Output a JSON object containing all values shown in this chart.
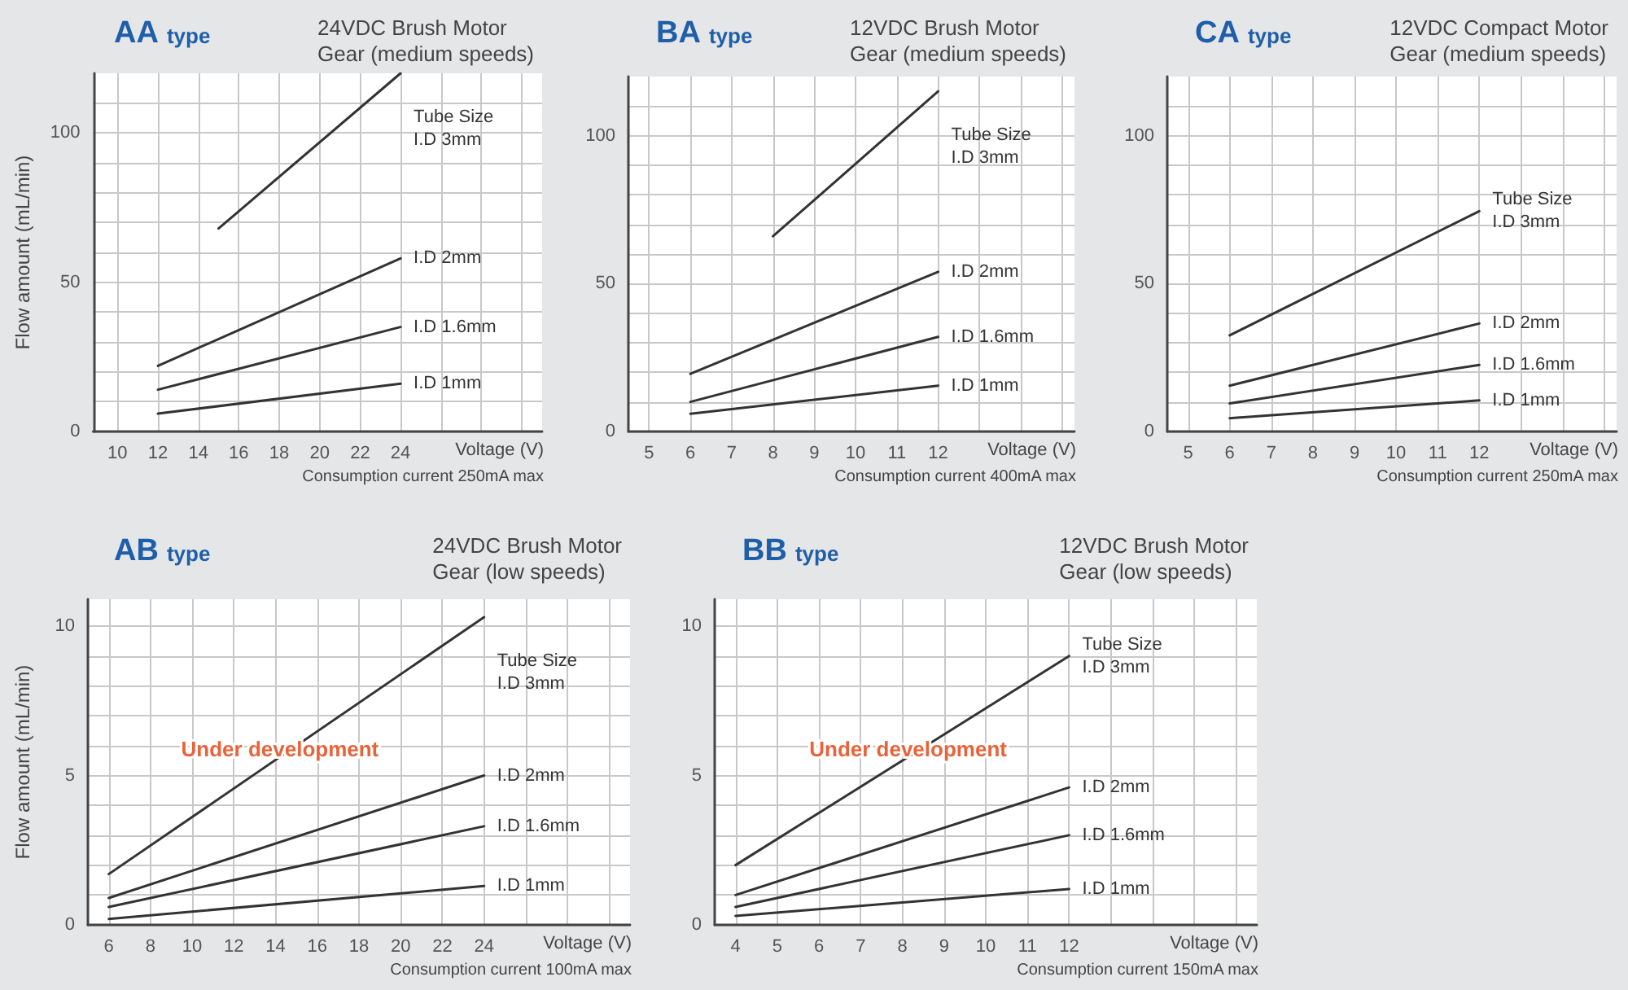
{
  "chart_data": [
    {
      "type": "line",
      "title": "AA type",
      "subtitle": "24VDC Brush Motor\nGear (medium speeds)",
      "xlabel": "Voltage (V)",
      "ylabel": "Flow amount (mL/min)",
      "annotations": [
        "Consumption current 250mA max"
      ],
      "xlim": [
        8.8,
        31
      ],
      "xticks": [
        10,
        12,
        14,
        16,
        18,
        20,
        22,
        24,
        {
          "value": 26,
          "label": null
        },
        {
          "value": 28,
          "label": null
        },
        {
          "value": 30,
          "label": null
        }
      ],
      "ylim": [
        0,
        120
      ],
      "yticks": [
        0,
        {
          "value": 10,
          "label": null
        },
        {
          "value": 20,
          "label": null
        },
        {
          "value": 30,
          "label": null
        },
        {
          "value": 40,
          "label": null
        },
        50,
        {
          "value": 60,
          "label": null
        },
        {
          "value": 70,
          "label": null
        },
        {
          "value": 80,
          "label": null
        },
        {
          "value": 90,
          "label": null
        },
        100,
        {
          "value": 110,
          "label": null
        }
      ],
      "grid": true,
      "marker": "none",
      "series": [
        {
          "name": "Tube Size\nI.D 3mm",
          "color": "#333333",
          "x": [
            15,
            24
          ],
          "values": [
            68,
            120
          ]
        },
        {
          "name": "I.D 2mm",
          "color": "#333333",
          "x": [
            12,
            24
          ],
          "values": [
            22,
            58
          ]
        },
        {
          "name": "I.D 1.6mm",
          "color": "#333333",
          "x": [
            12,
            24
          ],
          "values": [
            14,
            35
          ]
        },
        {
          "name": "I.D 1mm",
          "color": "#333333",
          "x": [
            12,
            24
          ],
          "values": [
            6,
            16
          ]
        }
      ]
    },
    {
      "type": "line",
      "title": "BA type",
      "subtitle": "12VDC Brush Motor\nGear (medium speeds)",
      "xlabel": "Voltage (V)",
      "annotations": [
        "Consumption current 400mA max"
      ],
      "xlim": [
        4.5,
        15.3
      ],
      "xticks": [
        5,
        6,
        7,
        8,
        9,
        10,
        11,
        12,
        {
          "value": 13,
          "label": null
        },
        {
          "value": 14,
          "label": null
        },
        {
          "value": 15,
          "label": null
        }
      ],
      "ylim": [
        0,
        120
      ],
      "yticks": [
        0,
        {
          "value": 10,
          "label": null
        },
        {
          "value": 20,
          "label": null
        },
        {
          "value": 30,
          "label": null
        },
        {
          "value": 40,
          "label": null
        },
        50,
        {
          "value": 60,
          "label": null
        },
        {
          "value": 70,
          "label": null
        },
        {
          "value": 80,
          "label": null
        },
        {
          "value": 90,
          "label": null
        },
        100,
        {
          "value": 110,
          "label": null
        }
      ],
      "grid": true,
      "marker": "none",
      "series": [
        {
          "name": "Tube Size\nI.D 3mm",
          "color": "#333333",
          "x": [
            8,
            12
          ],
          "values": [
            66,
            115
          ]
        },
        {
          "name": "I.D 2mm",
          "color": "#333333",
          "x": [
            6,
            12
          ],
          "values": [
            19.5,
            54
          ]
        },
        {
          "name": "I.D 1.6mm",
          "color": "#333333",
          "x": [
            6,
            12
          ],
          "values": [
            10,
            32
          ]
        },
        {
          "name": "I.D 1mm",
          "color": "#333333",
          "x": [
            6,
            12
          ],
          "values": [
            6,
            15.5
          ]
        }
      ]
    },
    {
      "type": "line",
      "title": "CA type",
      "subtitle": "12VDC Compact Motor\nGear (medium speeds)",
      "xlabel": "Voltage (V)",
      "annotations": [
        "Consumption current 250mA max"
      ],
      "xlim": [
        4.5,
        15.3
      ],
      "xticks": [
        5,
        6,
        7,
        8,
        9,
        10,
        11,
        12,
        {
          "value": 13,
          "label": null
        },
        {
          "value": 14,
          "label": null
        },
        {
          "value": 15,
          "label": null
        }
      ],
      "ylim": [
        0,
        120
      ],
      "yticks": [
        0,
        {
          "value": 10,
          "label": null
        },
        {
          "value": 20,
          "label": null
        },
        {
          "value": 30,
          "label": null
        },
        {
          "value": 40,
          "label": null
        },
        50,
        {
          "value": 60,
          "label": null
        },
        {
          "value": 70,
          "label": null
        },
        {
          "value": 80,
          "label": null
        },
        {
          "value": 90,
          "label": null
        },
        100,
        {
          "value": 110,
          "label": null
        }
      ],
      "grid": true,
      "marker": "none",
      "series": [
        {
          "name": "Tube Size\nI.D 3mm",
          "color": "#333333",
          "x": [
            6,
            12
          ],
          "values": [
            32.5,
            74.5
          ]
        },
        {
          "name": "I.D 2mm",
          "color": "#333333",
          "x": [
            6,
            12
          ],
          "values": [
            15.5,
            36.5
          ]
        },
        {
          "name": "I.D 1.6mm",
          "color": "#333333",
          "x": [
            6,
            12
          ],
          "values": [
            9.5,
            22.5
          ]
        },
        {
          "name": "I.D 1mm",
          "color": "#333333",
          "x": [
            6,
            12
          ],
          "values": [
            4.5,
            10.5
          ]
        }
      ]
    },
    {
      "type": "line",
      "title": "AB type",
      "subtitle": "24VDC Brush Motor\nGear (low speeds)",
      "xlabel": "Voltage (V)",
      "ylabel": "Flow amount (mL/min)",
      "annotations": [
        "Consumption current 100mA max",
        "Under development"
      ],
      "xlim": [
        5,
        31
      ],
      "xticks": [
        6,
        8,
        10,
        12,
        14,
        16,
        18,
        20,
        22,
        24,
        {
          "value": 26,
          "label": null
        },
        {
          "value": 28,
          "label": null
        },
        {
          "value": 30,
          "label": null
        }
      ],
      "ylim": [
        0,
        10.9
      ],
      "yticks": [
        0,
        {
          "value": 1,
          "label": null
        },
        {
          "value": 2,
          "label": null
        },
        {
          "value": 3,
          "label": null
        },
        {
          "value": 4,
          "label": null
        },
        5,
        {
          "value": 6,
          "label": null
        },
        {
          "value": 7,
          "label": null
        },
        {
          "value": 8,
          "label": null
        },
        {
          "value": 9,
          "label": null
        },
        10
      ],
      "grid": true,
      "marker": "none",
      "series": [
        {
          "name": "Tube Size\nI.D 3mm",
          "color": "#333333",
          "x": [
            6,
            24
          ],
          "values": [
            1.7,
            10.3
          ]
        },
        {
          "name": "I.D 2mm",
          "color": "#333333",
          "x": [
            6,
            24
          ],
          "values": [
            0.9,
            5.0
          ]
        },
        {
          "name": "I.D 1.6mm",
          "color": "#333333",
          "x": [
            6,
            24
          ],
          "values": [
            0.6,
            3.3
          ]
        },
        {
          "name": "I.D 1mm",
          "color": "#333333",
          "x": [
            6,
            24
          ],
          "values": [
            0.2,
            1.3
          ]
        }
      ]
    },
    {
      "type": "line",
      "title": "BB type",
      "subtitle": "12VDC Brush Motor\nGear (low speeds)",
      "xlabel": "Voltage (V)",
      "annotations": [
        "Consumption current 150mA max",
        "Under development"
      ],
      "xlim": [
        3.5,
        16.5
      ],
      "xticks": [
        4,
        5,
        6,
        7,
        8,
        9,
        10,
        11,
        12,
        {
          "value": 13,
          "label": null
        },
        {
          "value": 14,
          "label": null
        },
        {
          "value": 15,
          "label": null
        },
        {
          "value": 16,
          "label": null
        }
      ],
      "ylim": [
        0,
        10.9
      ],
      "yticks": [
        0,
        {
          "value": 1,
          "label": null
        },
        {
          "value": 2,
          "label": null
        },
        {
          "value": 3,
          "label": null
        },
        {
          "value": 4,
          "label": null
        },
        5,
        {
          "value": 6,
          "label": null
        },
        {
          "value": 7,
          "label": null
        },
        {
          "value": 8,
          "label": null
        },
        {
          "value": 9,
          "label": null
        },
        10
      ],
      "grid": true,
      "marker": "none",
      "series": [
        {
          "name": "Tube Size\nI.D 3mm",
          "color": "#333333",
          "x": [
            4,
            12
          ],
          "values": [
            2.0,
            9.0
          ]
        },
        {
          "name": "I.D 2mm",
          "color": "#333333",
          "x": [
            4,
            12
          ],
          "values": [
            1.0,
            4.6
          ]
        },
        {
          "name": "I.D 1.6mm",
          "color": "#333333",
          "x": [
            4,
            12
          ],
          "values": [
            0.6,
            3.0
          ]
        },
        {
          "name": "I.D 1mm",
          "color": "#333333",
          "x": [
            4,
            12
          ],
          "values": [
            0.3,
            1.2
          ]
        }
      ]
    }
  ]
}
